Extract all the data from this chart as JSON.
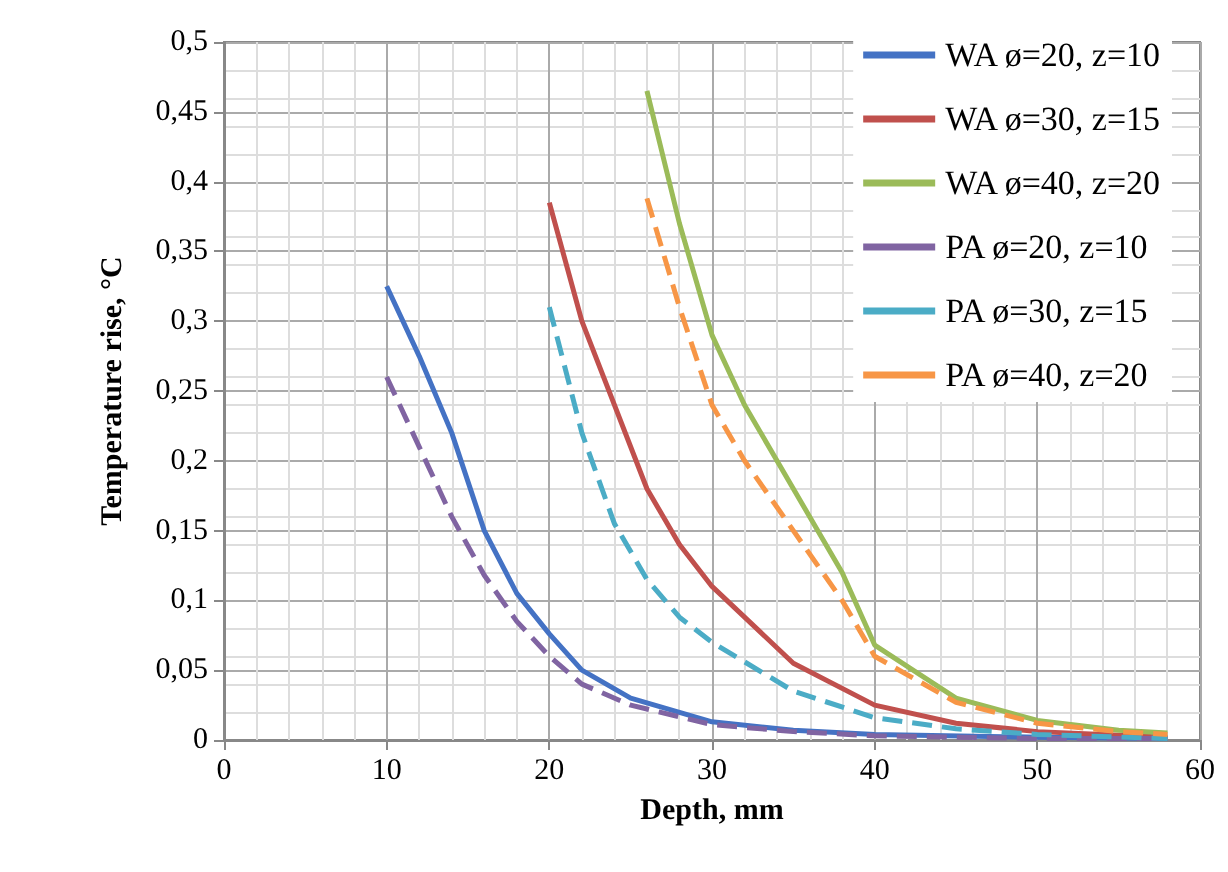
{
  "chart_data": {
    "type": "line",
    "xlabel": "Depth, mm",
    "ylabel": "Temperature rise, °C",
    "xlim": [
      0,
      60
    ],
    "xticks": [
      0,
      10,
      20,
      30,
      40,
      50,
      60
    ],
    "ylim": [
      0,
      0.5
    ],
    "yticks": [
      {
        "value": 0,
        "label": "0"
      },
      {
        "value": 0.05,
        "label": "0,05"
      },
      {
        "value": 0.1,
        "label": "0,1"
      },
      {
        "value": 0.15,
        "label": "0,15"
      },
      {
        "value": 0.2,
        "label": "0,2"
      },
      {
        "value": 0.25,
        "label": "0,25"
      },
      {
        "value": 0.3,
        "label": "0,3"
      },
      {
        "value": 0.35,
        "label": "0,35"
      },
      {
        "value": 0.4,
        "label": "0,4"
      },
      {
        "value": 0.45,
        "label": "0,45"
      },
      {
        "value": 0.5,
        "label": "0,5"
      }
    ],
    "grid": true,
    "legend": "top right",
    "marker": "none",
    "series": [
      {
        "name": "WA ø=20, z=10",
        "color": "#4472c4",
        "line_style": "solid",
        "x": [
          10,
          12,
          14,
          16,
          18,
          20,
          22,
          25,
          30,
          35,
          40,
          50,
          58
        ],
        "values": [
          0.325,
          0.275,
          0.22,
          0.15,
          0.105,
          0.076,
          0.05,
          0.03,
          0.013,
          0.007,
          0.004,
          0.002,
          0.001
        ]
      },
      {
        "name": "WA ø=30, z=15",
        "color": "#c0504d",
        "line_style": "solid",
        "x": [
          20,
          22,
          24,
          26,
          28,
          30,
          35,
          40,
          45,
          50,
          58
        ],
        "values": [
          0.385,
          0.3,
          0.24,
          0.18,
          0.14,
          0.11,
          0.055,
          0.025,
          0.012,
          0.006,
          0.002
        ]
      },
      {
        "name": "WA ø=40, z=20",
        "color": "#9bbb59",
        "line_style": "solid",
        "x": [
          26,
          28,
          30,
          32,
          35,
          38,
          40,
          45,
          50,
          55,
          58
        ],
        "values": [
          0.465,
          0.37,
          0.29,
          0.24,
          0.18,
          0.12,
          0.068,
          0.03,
          0.014,
          0.007,
          0.005
        ]
      },
      {
        "name": "PA ø=20, z=10",
        "color": "#8064a2",
        "line_style": "dashed",
        "x": [
          10,
          12,
          14,
          16,
          18,
          20,
          22,
          25,
          30,
          35,
          40,
          50,
          58
        ],
        "values": [
          0.26,
          0.21,
          0.16,
          0.118,
          0.085,
          0.06,
          0.04,
          0.025,
          0.011,
          0.006,
          0.003,
          0.001,
          0.001
        ]
      },
      {
        "name": "PA ø=30, z=15",
        "color": "#4bacc6",
        "line_style": "dashed",
        "x": [
          20,
          22,
          24,
          26,
          28,
          30,
          35,
          40,
          45,
          50,
          58
        ],
        "values": [
          0.31,
          0.22,
          0.155,
          0.115,
          0.088,
          0.07,
          0.035,
          0.016,
          0.008,
          0.004,
          0.001
        ]
      },
      {
        "name": "PA ø=40, z=20",
        "color": "#f79646",
        "line_style": "dashed",
        "x": [
          26,
          28,
          30,
          32,
          35,
          38,
          40,
          45,
          50,
          55,
          58
        ],
        "values": [
          0.388,
          0.31,
          0.24,
          0.2,
          0.15,
          0.1,
          0.06,
          0.027,
          0.012,
          0.006,
          0.004
        ]
      }
    ]
  }
}
